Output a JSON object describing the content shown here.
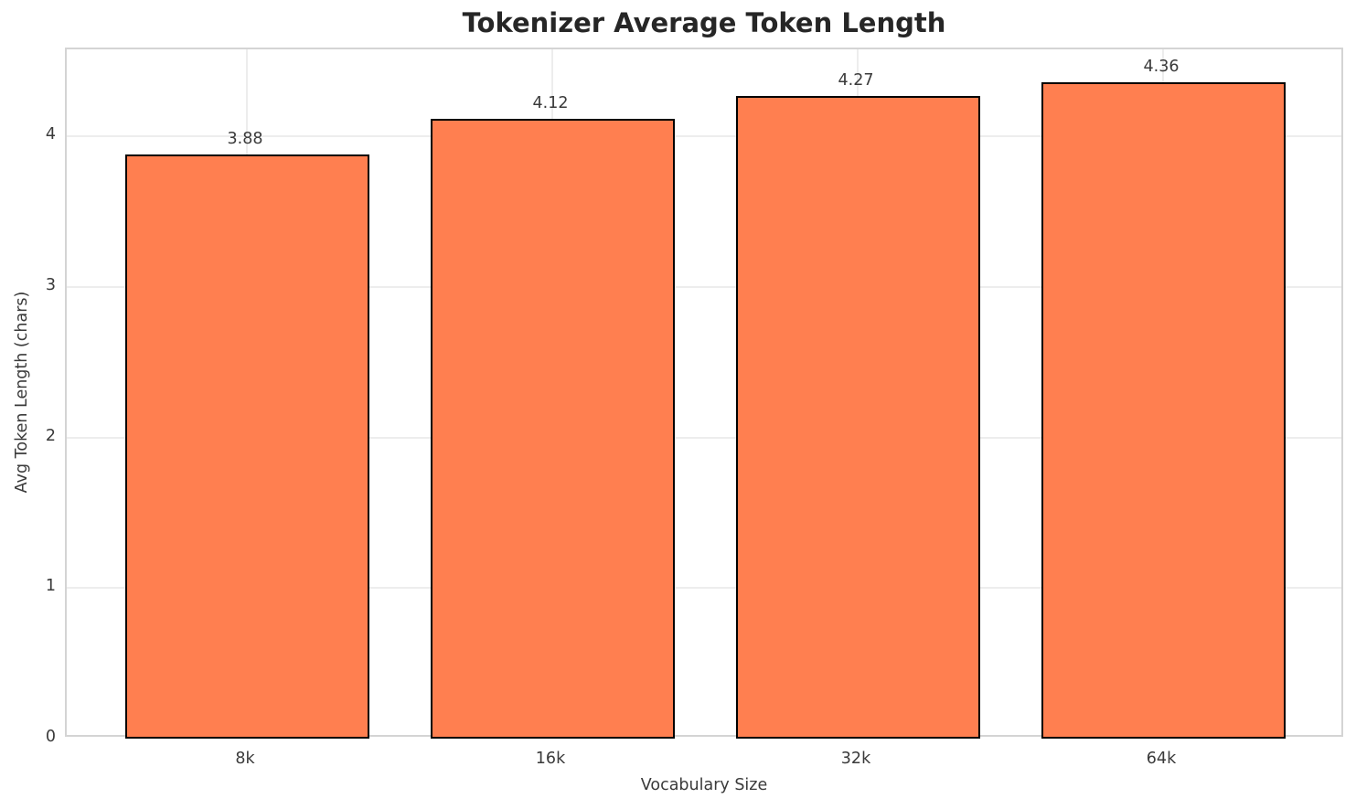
{
  "chart_data": {
    "type": "bar",
    "title": "Tokenizer Average Token Length",
    "xlabel": "Vocabulary Size",
    "ylabel": "Avg Token Length (chars)",
    "categories": [
      "8k",
      "16k",
      "32k",
      "64k"
    ],
    "values": [
      3.88,
      4.12,
      4.27,
      4.36
    ],
    "value_labels": [
      "3.88",
      "4.12",
      "4.27",
      "4.36"
    ],
    "yticks": [
      0,
      1,
      2,
      3,
      4
    ],
    "ylim": [
      0,
      4.58
    ],
    "grid": true,
    "legend_position": "none",
    "colors": {
      "bar_fill": "#FF7F50",
      "bar_edge": "#000000",
      "grid_line": "#ededed",
      "spine": "#d4d4d4",
      "text": "#3a3a3a",
      "title_text": "#262626",
      "background": "#ffffff"
    }
  }
}
